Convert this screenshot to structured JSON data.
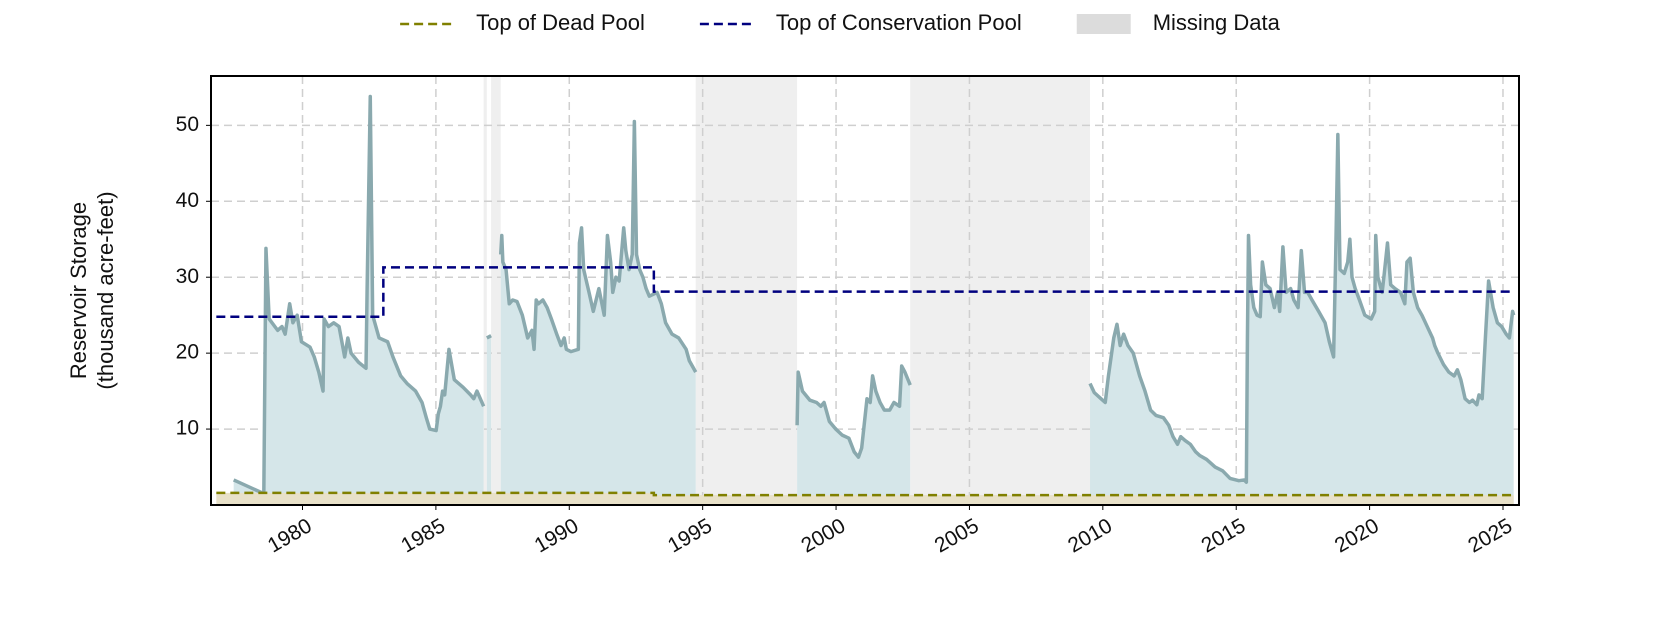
{
  "chart_data": {
    "type": "line",
    "ylabel": [
      "Reservoir Storage",
      "(thousand acre-feet)"
    ],
    "xlim": [
      1976.57,
      2025.6
    ],
    "ylim": [
      0,
      56.5
    ],
    "xticks": [
      1980,
      1985,
      1990,
      1995,
      2000,
      2005,
      2010,
      2015,
      2020,
      2025
    ],
    "yticks": [
      10,
      20,
      30,
      40,
      50
    ],
    "grid": true,
    "legend": "top-center",
    "missing_data": {
      "name": "Missing Data",
      "color": "#efefef",
      "legend_color": "#dcdcdc",
      "spans": [
        [
          1986.79,
          1986.91
        ],
        [
          1987.07,
          1987.43
        ],
        [
          1994.74,
          1998.54
        ],
        [
          2002.78,
          2009.52
        ]
      ]
    },
    "series": [
      {
        "color": "#8aa9ae",
        "fill_color": "#d5e6e9",
        "x": [
          1977.42,
          1978.55,
          1978.63,
          1978.75,
          1979.07,
          1979.23,
          1979.35,
          1979.52,
          1979.64,
          1979.8,
          1979.96,
          1980.28,
          1980.44,
          1980.61,
          1980.77,
          1980.81,
          1980.97,
          1981.17,
          1981.37,
          1981.58,
          1981.7,
          1981.82,
          1982.1,
          1982.38,
          1982.42,
          1982.54,
          1982.63,
          1982.87,
          1983.19,
          1983.39,
          1983.68,
          1983.92,
          1984.24,
          1984.48,
          1984.64,
          1984.77,
          1985.01,
          1985.09,
          1985.17,
          1985.25,
          1985.33,
          1985.41,
          1985.49,
          1985.69,
          1986.02,
          1986.3,
          1986.42,
          1986.54,
          1986.79,
          1986.85,
          1986.91,
          1987.07,
          1987.25,
          1987.43,
          1987.47,
          1987.51,
          1987.63,
          1987.75,
          1987.88,
          1988.04,
          1988.24,
          1988.44,
          1988.6,
          1988.68,
          1988.76,
          1988.84,
          1989.01,
          1989.17,
          1989.33,
          1989.53,
          1989.69,
          1989.81,
          1989.89,
          1990.06,
          1990.34,
          1990.38,
          1990.46,
          1990.54,
          1990.74,
          1990.9,
          1991.11,
          1991.31,
          1991.43,
          1991.55,
          1991.63,
          1991.75,
          1991.87,
          1992.04,
          1992.12,
          1992.24,
          1992.36,
          1992.44,
          1992.52,
          1992.64,
          1992.76,
          1992.88,
          1993.0,
          1993.29,
          1993.45,
          1993.61,
          1993.85,
          1994.1,
          1994.38,
          1994.5,
          1994.74,
          1996.6,
          1998.54,
          1998.58,
          1998.74,
          1999.02,
          1999.27,
          1999.43,
          1999.55,
          1999.75,
          1999.99,
          2000.23,
          2000.48,
          2000.68,
          2000.84,
          2000.96,
          2001.16,
          2001.28,
          2001.37,
          2001.49,
          2001.65,
          2001.81,
          2002.01,
          2002.17,
          2002.38,
          2002.46,
          2002.58,
          2002.78,
          2006.1,
          2009.52,
          2009.68,
          2009.93,
          2010.09,
          2010.21,
          2010.29,
          2010.41,
          2010.53,
          2010.65,
          2010.78,
          2010.94,
          2011.14,
          2011.38,
          2011.58,
          2011.79,
          2011.99,
          2012.27,
          2012.47,
          2012.63,
          2012.8,
          2012.92,
          2013.08,
          2013.28,
          2013.48,
          2013.64,
          2013.89,
          2014.21,
          2014.49,
          2014.77,
          2015.1,
          2015.3,
          2015.38,
          2015.42,
          2015.46,
          2015.54,
          2015.66,
          2015.78,
          2015.9,
          2015.98,
          2016.11,
          2016.27,
          2016.43,
          2016.55,
          2016.63,
          2016.75,
          2016.87,
          2017.04,
          2017.16,
          2017.32,
          2017.44,
          2017.56,
          2017.68,
          2017.84,
          2018.09,
          2018.33,
          2018.49,
          2018.65,
          2018.73,
          2018.81,
          2018.89,
          2019.05,
          2019.18,
          2019.26,
          2019.34,
          2019.46,
          2019.62,
          2019.82,
          2020.06,
          2020.19,
          2020.23,
          2020.31,
          2020.47,
          2020.55,
          2020.67,
          2020.79,
          2020.95,
          2021.16,
          2021.32,
          2021.4,
          2021.52,
          2021.64,
          2021.8,
          2021.96,
          2022.16,
          2022.36,
          2022.44,
          2022.56,
          2022.77,
          2022.97,
          2023.17,
          2023.29,
          2023.42,
          2023.58,
          2023.74,
          2023.86,
          2024.02,
          2024.1,
          2024.22,
          2024.34,
          2024.46,
          2024.63,
          2024.79,
          2024.95,
          2025.12,
          2025.24,
          2025.36,
          2025.4
        ],
        "values": [
          3.3,
          1.5,
          33.8,
          24.5,
          23,
          23.5,
          22.5,
          26.5,
          24,
          25,
          21.5,
          20.8,
          19.5,
          17.5,
          15,
          24.5,
          23.5,
          24,
          23.5,
          19.5,
          22,
          20,
          18.8,
          18,
          28,
          53.8,
          25,
          22,
          21.5,
          19.5,
          17,
          16,
          15,
          13.5,
          11.5,
          10,
          9.8,
          12,
          13,
          15,
          14.5,
          17.5,
          20.5,
          16.5,
          15.5,
          14.5,
          14,
          15,
          13,
          null,
          22,
          22.3,
          null,
          33,
          35.5,
          32,
          31,
          26.5,
          27,
          26.8,
          25,
          22,
          23,
          20.5,
          27,
          26.5,
          27,
          26,
          24.5,
          22.5,
          21,
          22,
          20.5,
          20.2,
          20.5,
          34.5,
          36.5,
          31,
          28,
          25.5,
          28.5,
          25,
          35.5,
          32,
          28,
          30,
          29.5,
          36.5,
          33.5,
          31,
          33,
          50.5,
          33,
          31,
          30,
          28.5,
          27.5,
          28,
          26.5,
          24,
          22.5,
          22,
          20.5,
          19,
          17.5,
          null,
          10.5,
          17.5,
          15,
          13.8,
          13.5,
          13,
          13.5,
          11,
          10,
          9.2,
          8.8,
          7,
          6.3,
          7.5,
          14,
          13.5,
          17,
          15,
          13.5,
          12.5,
          12.5,
          13.5,
          13,
          18.3,
          17.5,
          15.8,
          null,
          16,
          14.8,
          14,
          13.5,
          17,
          19,
          22,
          23.8,
          21,
          22.5,
          21,
          20,
          17,
          15,
          12.5,
          11.8,
          11.5,
          10.5,
          9,
          8,
          9,
          8.5,
          8,
          7,
          6.5,
          6,
          5,
          4.5,
          3.5,
          3.2,
          3.3,
          3,
          22,
          35.5,
          29,
          26,
          25,
          24.8,
          32,
          29,
          28.5,
          26,
          28,
          25.5,
          34,
          28,
          28.5,
          27,
          26,
          33.5,
          28,
          28,
          27,
          25.5,
          24,
          21.5,
          19.5,
          33,
          48.8,
          31,
          30.5,
          32,
          35,
          30,
          28.5,
          27,
          25,
          24.5,
          25.5,
          35.5,
          30,
          28,
          30.5,
          34.5,
          29,
          28.5,
          28,
          26.5,
          32,
          32.5,
          28,
          26,
          25,
          23.5,
          22,
          21,
          20,
          18.5,
          17.5,
          17,
          17.8,
          16.5,
          14,
          13.5,
          13.8,
          13.2,
          14.5,
          14,
          22,
          29.5,
          26,
          24,
          23.5,
          22.5,
          22,
          25.5,
          25
        ]
      },
      {
        "name": "Top of Dead Pool",
        "color": "#808000",
        "fill_color": "#e8e1c9",
        "dash": true,
        "step": "post",
        "x": [
          1976.77,
          1993.17,
          2025.4
        ],
        "values": [
          1.6,
          1.3,
          1.3
        ]
      },
      {
        "name": "Top of Conservation Pool",
        "color": "#00007f",
        "dash": true,
        "step": "post",
        "x": [
          1976.77,
          1983.03,
          1993.17,
          2025.4
        ],
        "values": [
          24.8,
          31.3,
          28.1,
          28.1
        ]
      }
    ]
  }
}
